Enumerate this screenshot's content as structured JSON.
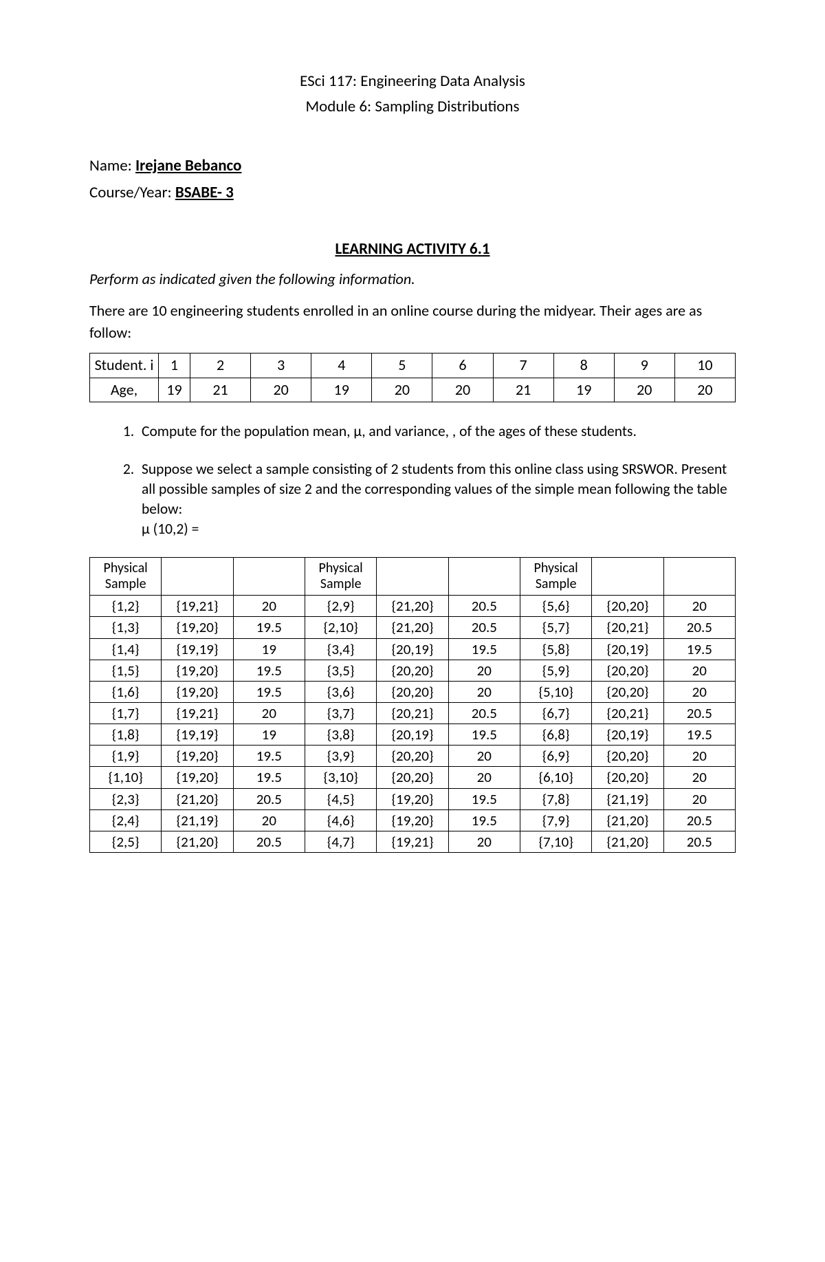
{
  "header": {
    "course_line": "ESci 117: Engineering Data Analysis",
    "module_line": "Module 6: Sampling Distributions"
  },
  "info": {
    "name_label": "Name: ",
    "name_value": "Irejane Bebanco",
    "course_label": "Course/Year: ",
    "course_value": "BSABE- 3"
  },
  "section_title": "LEARNING ACTIVITY 6.1",
  "instruction": "Perform as indicated given the following information.",
  "intro_text": "There are 10 engineering students enrolled in an online course during the midyear. Their ages are as follow:",
  "student_table": {
    "row1_label": "Student. i",
    "row1": [
      "1",
      "2",
      "3",
      "4",
      "5",
      "6",
      "7",
      "8",
      "9",
      "10"
    ],
    "row2_label": "Age,",
    "row2_first": "19",
    "row2": [
      "21",
      "20",
      "19",
      "20",
      "20",
      "21",
      "19",
      "20",
      "20"
    ]
  },
  "q1": "Compute for the population mean, μ, and variance, , of the ages of these students.",
  "q2": "Suppose we select a sample consisting of 2 students from this online class using SRSWOR. Present all possible samples of size 2 and the corresponding values of the simple mean following the table below:",
  "q2_formula": "μ (10,2) =",
  "sample_table": {
    "header": "Physical Sample",
    "rows": [
      [
        "{1,2}",
        "{19,21}",
        "20",
        "{2,9}",
        "{21,20}",
        "20.5",
        "{5,6}",
        "{20,20}",
        "20"
      ],
      [
        "{1,3}",
        "{19,20}",
        "19.5",
        "{2,10}",
        "{21,20}",
        "20.5",
        "{5,7}",
        "{20,21}",
        "20.5"
      ],
      [
        "{1,4}",
        "{19,19}",
        "19",
        "{3,4}",
        "{20,19}",
        "19.5",
        "{5,8}",
        "{20,19}",
        "19.5"
      ],
      [
        "{1,5}",
        "{19,20}",
        "19.5",
        "{3,5}",
        "{20,20}",
        "20",
        "{5,9}",
        "{20,20}",
        "20"
      ],
      [
        "{1,6}",
        "{19,20}",
        "19.5",
        "{3,6}",
        "{20,20}",
        "20",
        "{5,10}",
        "{20,20}",
        "20"
      ],
      [
        "{1,7}",
        "{19,21}",
        "20",
        "{3,7}",
        "{20,21}",
        "20.5",
        "{6,7}",
        "{20,21}",
        "20.5"
      ],
      [
        "{1,8}",
        "{19,19}",
        "19",
        "{3,8}",
        "{20,19}",
        "19.5",
        "{6,8}",
        "{20,19}",
        "19.5"
      ],
      [
        "{1,9}",
        "{19,20}",
        "19.5",
        "{3,9}",
        "{20,20}",
        "20",
        "{6,9}",
        "{20,20}",
        "20"
      ],
      [
        "{1,10}",
        "{19,20}",
        "19.5",
        "{3,10}",
        "{20,20}",
        "20",
        "{6,10}",
        "{20,20}",
        "20"
      ],
      [
        "{2,3}",
        "{21,20}",
        "20.5",
        "{4,5}",
        "{19,20}",
        "19.5",
        "{7,8}",
        "{21,19}",
        "20"
      ],
      [
        "{2,4}",
        "{21,19}",
        "20",
        "{4,6}",
        "{19,20}",
        "19.5",
        "{7,9}",
        "{21,20}",
        "20.5"
      ],
      [
        "{2,5}",
        "{21,20}",
        "20.5",
        "{4,7}",
        "{19,21}",
        "20",
        "{7,10}",
        "{21,20}",
        "20.5"
      ]
    ]
  }
}
